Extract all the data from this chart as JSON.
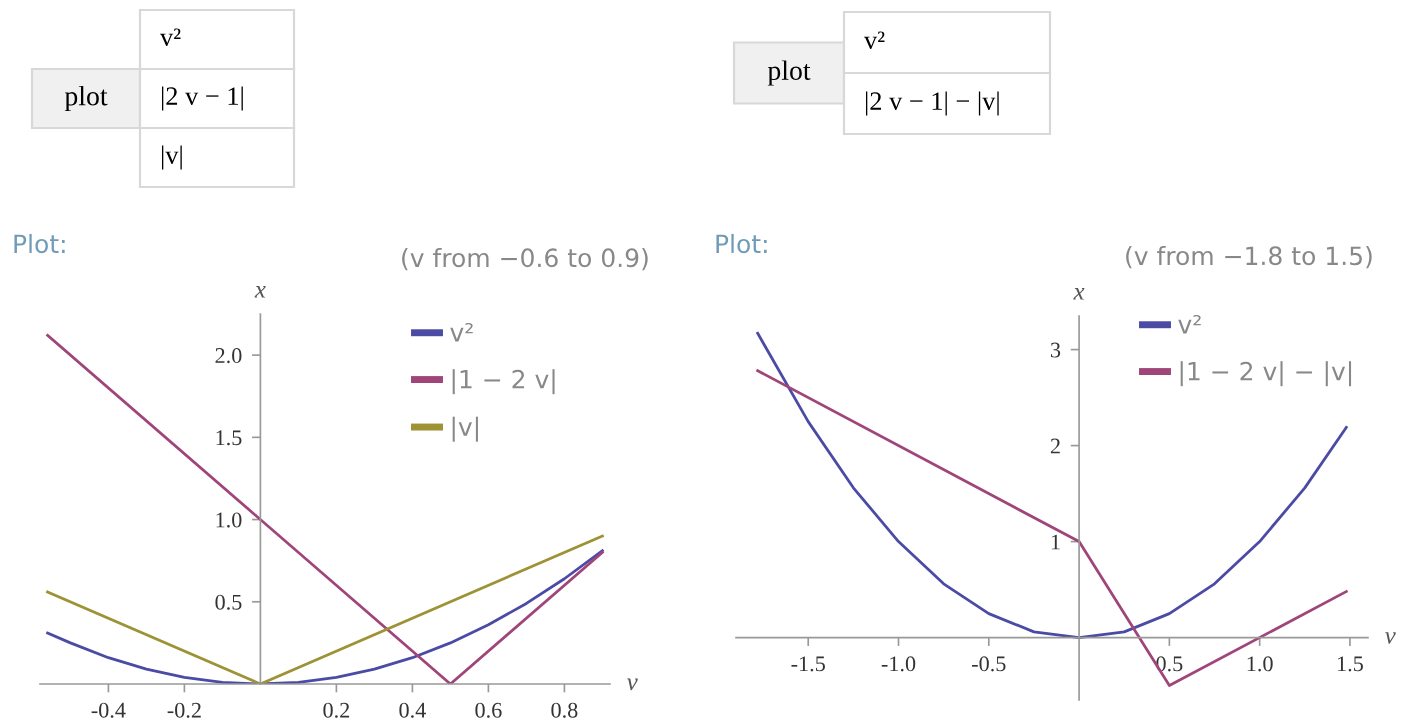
{
  "chart_data": [
    {
      "type": "line",
      "xlabel": "v",
      "ylabel": "x",
      "xlim": [
        -0.58,
        0.92
      ],
      "ylim": [
        0,
        2.25
      ],
      "xticks": [
        -0.4,
        -0.2,
        0.2,
        0.4,
        0.6,
        0.8
      ],
      "yticks": [
        0.5,
        {
          "value": 1,
          "label": "1.0"
        },
        1.5,
        {
          "value": 2,
          "label": "2.0"
        }
      ],
      "grid": false,
      "legend": "top right",
      "annotations": [
        "plot",
        "v²",
        "|2 v − 1|",
        "|v|",
        "Plot:",
        "(v from −0.6 to 0.9)"
      ],
      "series": [
        {
          "name": "v²",
          "color": "#4b4ba6",
          "x": [
            -0.56,
            -0.5,
            -0.4,
            -0.3,
            -0.2,
            -0.1,
            0,
            0.1,
            0.2,
            0.3,
            0.4,
            0.5,
            0.6,
            0.7,
            0.8,
            0.9
          ],
          "values": [
            0.31,
            0.25,
            0.16,
            0.09,
            0.04,
            0.01,
            0,
            0.01,
            0.04,
            0.09,
            0.16,
            0.25,
            0.36,
            0.49,
            0.64,
            0.81
          ]
        },
        {
          "name": "|1 − 2 v|",
          "color": "#a0457a",
          "x": [
            -0.56,
            0.5,
            0.9
          ],
          "values": [
            2.12,
            0,
            0.8
          ]
        },
        {
          "name": "|v|",
          "color": "#9d9234",
          "x": [
            -0.56,
            0,
            0.9
          ],
          "values": [
            0.56,
            0,
            0.9
          ]
        }
      ]
    },
    {
      "type": "line",
      "xlabel": "v",
      "ylabel": "x",
      "xlim": [
        -1.9,
        1.6
      ],
      "ylim": [
        -0.65,
        3.35
      ],
      "xticks": [
        -1.5,
        {
          "value": -1,
          "label": "-1.0"
        },
        -0.5,
        0.5,
        {
          "value": 1,
          "label": "1.0"
        },
        1.5
      ],
      "yticks": [
        1,
        2,
        3
      ],
      "grid": false,
      "legend": "top right",
      "annotations": [
        "plot",
        "v²",
        "|2 v − 1| − |v|",
        "Plot:",
        "(v from −1.8 to 1.5)"
      ],
      "series": [
        {
          "name": "v²",
          "color": "#4b4ba6",
          "x": [
            -1.78,
            -1.5,
            -1.25,
            -1,
            -0.75,
            -0.5,
            -0.25,
            0,
            0.25,
            0.5,
            0.75,
            1,
            1.25,
            1.48
          ],
          "values": [
            3.17,
            2.25,
            1.56,
            1,
            0.56,
            0.25,
            0.06,
            0,
            0.06,
            0.25,
            0.56,
            1,
            1.56,
            2.19
          ]
        },
        {
          "name": "|1 − 2 v| − |v|",
          "color": "#a0457a",
          "x": [
            -1.78,
            0,
            0.5,
            1.48
          ],
          "values": [
            2.78,
            1,
            -0.5,
            0.48
          ]
        }
      ]
    }
  ]
}
